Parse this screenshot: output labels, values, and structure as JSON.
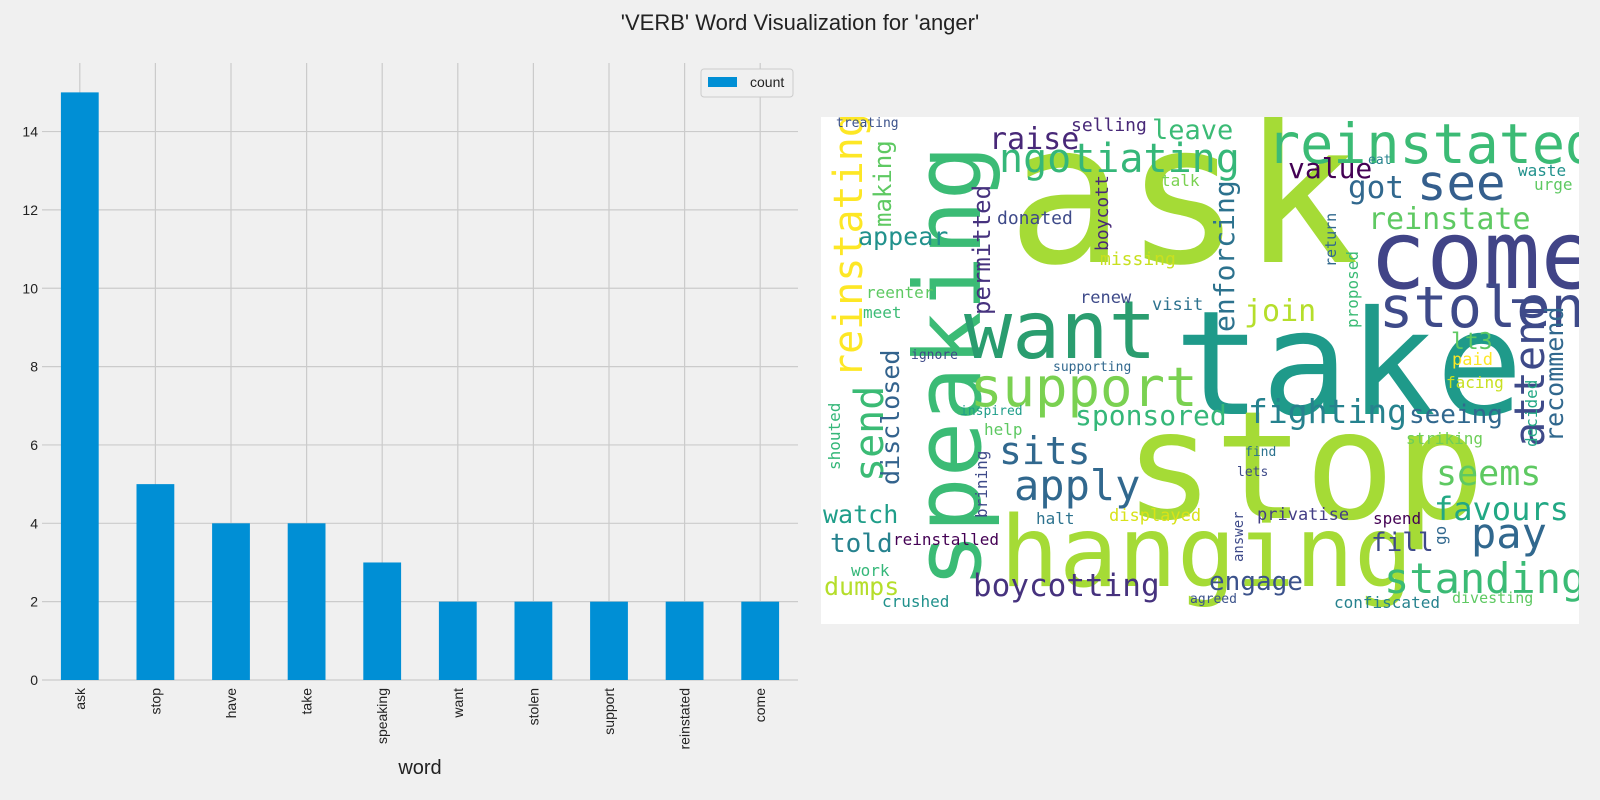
{
  "figure": {
    "title": "'VERB' Word Visualization for 'anger'"
  },
  "chart_data": {
    "type": "bar",
    "categories": [
      "ask",
      "stop",
      "have",
      "take",
      "speaking",
      "want",
      "stolen",
      "support",
      "reinstated",
      "come"
    ],
    "series": [
      {
        "name": "count",
        "values": [
          15,
          5,
          4,
          4,
          3,
          2,
          2,
          2,
          2,
          2
        ],
        "color": "#008fd5"
      }
    ],
    "xlabel": "word",
    "ylabel": "",
    "ylim": [
      0,
      15.75
    ],
    "yticks": [
      0,
      2,
      4,
      6,
      8,
      10,
      12,
      14
    ],
    "grid": true,
    "legend": "top-right"
  },
  "wordcloud": {
    "words": [
      {
        "text": "ask",
        "color": "#a5db36"
      },
      {
        "text": "take",
        "color": "#1f9a8a"
      },
      {
        "text": "stop",
        "color": "#a5db36"
      },
      {
        "text": "speaking",
        "color": "#3bbb75"
      },
      {
        "text": "hanging",
        "color": "#a5db36"
      },
      {
        "text": "come",
        "color": "#414487"
      },
      {
        "text": "want",
        "color": "#2a9d6f"
      },
      {
        "text": "stolen",
        "color": "#3e4a89"
      },
      {
        "text": "reinstated",
        "color": "#3bbb75"
      },
      {
        "text": "support",
        "color": "#7ad151"
      },
      {
        "text": "ngotiating",
        "color": "#35b779"
      },
      {
        "text": "see",
        "color": "#355f8d"
      },
      {
        "text": "standing",
        "color": "#3bbb75"
      },
      {
        "text": "apply",
        "color": "#31688e"
      },
      {
        "text": "boycotting",
        "color": "#46327e"
      },
      {
        "text": "fighting",
        "color": "#26828e"
      },
      {
        "text": "reinstating",
        "color": "#fde725"
      },
      {
        "text": "pay",
        "color": "#31688e"
      },
      {
        "text": "attend",
        "color": "#3e4a89"
      },
      {
        "text": "seems",
        "color": "#5ec962"
      },
      {
        "text": "favours",
        "color": "#22a884"
      },
      {
        "text": "sits",
        "color": "#31688e"
      },
      {
        "text": "send",
        "color": "#3bbb75"
      },
      {
        "text": "sponsored",
        "color": "#35b779"
      },
      {
        "text": "raise",
        "color": "#482878"
      },
      {
        "text": "leave",
        "color": "#3bbb75"
      },
      {
        "text": "value",
        "color": "#440154"
      },
      {
        "text": "got",
        "color": "#31688e"
      },
      {
        "text": "reinstate",
        "color": "#5ec962"
      },
      {
        "text": "join",
        "color": "#b5de2b"
      },
      {
        "text": "enforcing",
        "color": "#2c728e"
      },
      {
        "text": "engage",
        "color": "#3b528b"
      },
      {
        "text": "recommend",
        "color": "#31688e"
      },
      {
        "text": "seeing",
        "color": "#31688e"
      },
      {
        "text": "appear",
        "color": "#21918c"
      },
      {
        "text": "making",
        "color": "#5ec962"
      },
      {
        "text": "permitted",
        "color": "#46327e"
      },
      {
        "text": "disclosed",
        "color": "#33638d"
      },
      {
        "text": "watch",
        "color": "#1f9e89"
      },
      {
        "text": "told",
        "color": "#26828e"
      },
      {
        "text": "dumps",
        "color": "#b5de2b"
      },
      {
        "text": "fill",
        "color": "#3e4a89"
      },
      {
        "text": "lt3",
        "color": "#5ec962"
      },
      {
        "text": "selling",
        "color": "#482878"
      },
      {
        "text": "donated",
        "color": "#3e4a89"
      },
      {
        "text": "boycott",
        "color": "#482878"
      },
      {
        "text": "missing",
        "color": "#c8e020"
      },
      {
        "text": "renew",
        "color": "#3e4a89"
      },
      {
        "text": "visit",
        "color": "#2c728e"
      },
      {
        "text": "reenter",
        "color": "#5ec962"
      },
      {
        "text": "meet",
        "color": "#3bbb75"
      },
      {
        "text": "ignore",
        "color": "#3e4a89"
      },
      {
        "text": "supporting",
        "color": "#31688e"
      },
      {
        "text": "inspired",
        "color": "#1f9e89"
      },
      {
        "text": "help",
        "color": "#5ec962"
      },
      {
        "text": "brining",
        "color": "#3e4a89"
      },
      {
        "text": "halt",
        "color": "#2c728e"
      },
      {
        "text": "displayed",
        "color": "#d8e219"
      },
      {
        "text": "privatise",
        "color": "#433e85"
      },
      {
        "text": "spend",
        "color": "#440154"
      },
      {
        "text": "reinstalled",
        "color": "#440154"
      },
      {
        "text": "work",
        "color": "#35b779"
      },
      {
        "text": "crushed",
        "color": "#21918c"
      },
      {
        "text": "answer",
        "color": "#3e4a89"
      },
      {
        "text": "agreed",
        "color": "#3b528b"
      },
      {
        "text": "confiscated",
        "color": "#26828e"
      },
      {
        "text": "divesting",
        "color": "#5ec962"
      },
      {
        "text": "go",
        "color": "#31688e"
      },
      {
        "text": "find",
        "color": "#2c728e"
      },
      {
        "text": "lets",
        "color": "#3e4a89"
      },
      {
        "text": "striking",
        "color": "#6ece58"
      },
      {
        "text": "facing",
        "color": "#c8e020"
      },
      {
        "text": "paid",
        "color": "#fde725"
      },
      {
        "text": "proposed",
        "color": "#3bbb75"
      },
      {
        "text": "return",
        "color": "#31688e"
      },
      {
        "text": "talk",
        "color": "#7ad151"
      },
      {
        "text": "eat",
        "color": "#26828e"
      },
      {
        "text": "waste",
        "color": "#21918c"
      },
      {
        "text": "urge",
        "color": "#5ec962"
      },
      {
        "text": "treating",
        "color": "#3b528b"
      },
      {
        "text": "decided",
        "color": "#22a884"
      },
      {
        "text": "shouted",
        "color": "#35b779"
      }
    ]
  }
}
